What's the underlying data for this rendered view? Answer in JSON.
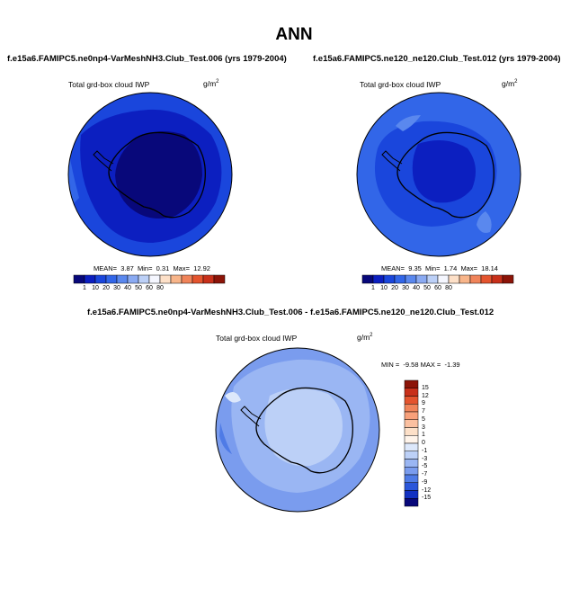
{
  "page": {
    "title": "ANN"
  },
  "panels": [
    {
      "case_title": "f.e15a6.FAMIPC5.ne0np4-VarMeshNH3.Club_Test.006 (yrs 1979-2004)",
      "variable": "Total grd-box cloud IWP",
      "units_base": "g/m",
      "units_exp": "2",
      "stats": {
        "mean_label": "MEAN=",
        "mean": "3.87",
        "min_label": "Min=",
        "min": "0.31",
        "max_label": "Max=",
        "max": "12.92"
      }
    },
    {
      "case_title": "f.e15a6.FAMIPC5.ne120_ne120.Club_Test.012 (yrs 1979-2004)",
      "variable": "Total grd-box cloud IWP",
      "units_base": "g/m",
      "units_exp": "2",
      "stats": {
        "mean_label": "MEAN=",
        "mean": "9.35",
        "min_label": "Min=",
        "min": "1.74",
        "max_label": "Max=",
        "max": "18.14"
      }
    }
  ],
  "diff_panel": {
    "case_title": "f.e15a6.FAMIPC5.ne0np4-VarMeshNH3.Club_Test.006 - f.e15a6.FAMIPC5.ne120_ne120.Club_Test.012",
    "variable": "Total grd-box cloud IWP",
    "units_base": "g/m",
    "units_exp": "2",
    "stats": {
      "min_label": "MIN =",
      "min": "-9.58",
      "max_label": "MAX =",
      "max": "-1.39"
    }
  },
  "chart_data": [
    {
      "type": "heatmap",
      "projection": "south-polar-stereographic",
      "title": "Total grd-box cloud IWP",
      "units": "g/m^2",
      "colorbar": {
        "orientation": "horizontal",
        "levels": [
          "1",
          "10",
          "20",
          "30",
          "40",
          "50",
          "60",
          "80"
        ],
        "colors": [
          "#08087a",
          "#0c1fc0",
          "#1a46dc",
          "#3266e8",
          "#5a88ee",
          "#8aaaf2",
          "#bcd0f7",
          "#f5f7ff",
          "#fde0c8",
          "#f8b58a",
          "#f0845a",
          "#e4542e",
          "#c8301a",
          "#8c1408"
        ]
      },
      "stats": {
        "mean": 3.87,
        "min": 0.31,
        "max": 12.92
      }
    },
    {
      "type": "heatmap",
      "projection": "south-polar-stereographic",
      "title": "Total grd-box cloud IWP",
      "units": "g/m^2",
      "colorbar": {
        "orientation": "horizontal",
        "levels": [
          "1",
          "10",
          "20",
          "30",
          "40",
          "50",
          "60",
          "80"
        ],
        "colors": [
          "#08087a",
          "#0c1fc0",
          "#1a46dc",
          "#3266e8",
          "#5a88ee",
          "#8aaaf2",
          "#bcd0f7",
          "#f5f7ff",
          "#fde0c8",
          "#f8b58a",
          "#f0845a",
          "#e4542e",
          "#c8301a",
          "#8c1408"
        ]
      },
      "stats": {
        "mean": 9.35,
        "min": 1.74,
        "max": 18.14
      }
    },
    {
      "type": "heatmap",
      "projection": "south-polar-stereographic",
      "title": "Total grd-box cloud IWP",
      "units": "g/m^2",
      "colorbar": {
        "orientation": "vertical",
        "levels": [
          "15",
          "12",
          "9",
          "7",
          "5",
          "3",
          "1",
          "0",
          "-1",
          "-3",
          "-5",
          "-7",
          "-9",
          "-12",
          "-15"
        ],
        "colors": [
          "#8c1408",
          "#c8301a",
          "#e4542e",
          "#f0845a",
          "#f8a07a",
          "#fbc0a0",
          "#fde0c8",
          "#fff4ea",
          "#dde8fb",
          "#bcd0f7",
          "#9ab6f3",
          "#7a9cee",
          "#4f7be6",
          "#2a56da",
          "#1231c2",
          "#08087a"
        ]
      },
      "stats": {
        "min": -9.58,
        "max": -1.39
      }
    }
  ]
}
